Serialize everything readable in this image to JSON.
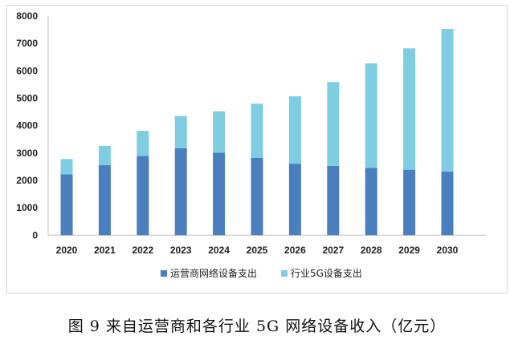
{
  "chart_data": {
    "type": "bar",
    "stacked": true,
    "categories": [
      "2020",
      "2021",
      "2022",
      "2023",
      "2024",
      "2025",
      "2026",
      "2027",
      "2028",
      "2029",
      "2030"
    ],
    "series": [
      {
        "name": "运营商网络设备支出",
        "color": "#4a7ebf",
        "values": [
          2220,
          2560,
          2890,
          3170,
          3010,
          2820,
          2610,
          2530,
          2460,
          2390,
          2320
        ]
      },
      {
        "name": "行业5G设备支出",
        "color": "#7ecde0",
        "values": [
          560,
          700,
          920,
          1180,
          1510,
          1980,
          2460,
          3060,
          3810,
          4430,
          5210
        ]
      }
    ],
    "ylim": [
      0,
      8000
    ],
    "yticks": [
      0,
      1000,
      2000,
      3000,
      4000,
      5000,
      6000,
      7000,
      8000
    ],
    "grid": false,
    "legend": "bottom",
    "xlabel": "",
    "ylabel": "",
    "title": ""
  },
  "caption": "图 9  来自运营商和各行业 5G 网络设备收入（亿元）"
}
